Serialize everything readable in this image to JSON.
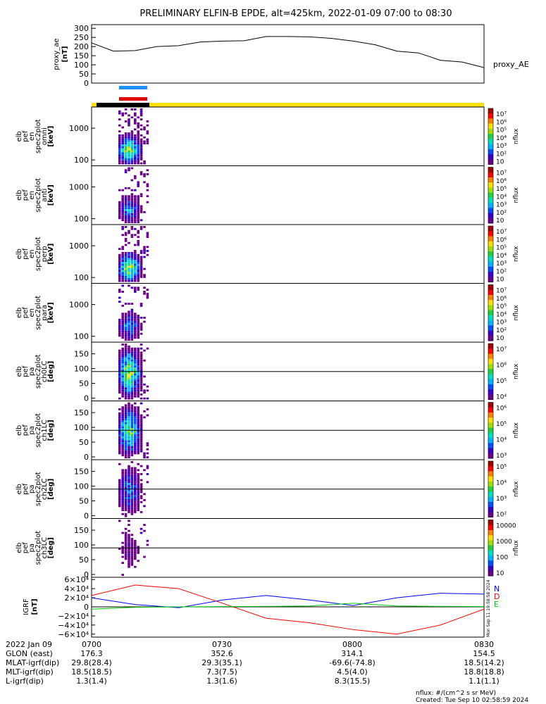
{
  "title": "PRELIMINARY ELFIN-B EPDE, alt=425km, 2022-01-09 07:00 to 08:30",
  "colors": {
    "yellow_bar": "#ffe000",
    "black_bar": "#000000",
    "blue_marker": "#1e8fff",
    "red_marker": "#e00000"
  },
  "ae_panel": {
    "ylabel": [
      "proxy_ae",
      "[nT]"
    ],
    "yticks": [
      "300",
      "250",
      "200",
      "150",
      "100",
      "50",
      "0"
    ],
    "legend": "proxy_AE",
    "ylim": [
      0,
      320
    ]
  },
  "spec_panels": [
    {
      "id": "omni",
      "ylabel": [
        "elb",
        "pef",
        "en",
        "spec2plot",
        "omni",
        "[keV]"
      ],
      "yticks": [
        "1000",
        "100"
      ],
      "cbar_ticks": [
        "10⁷",
        "10⁶",
        "10⁵",
        "10⁴",
        "10³",
        "10²",
        "10"
      ],
      "cbar_label": "nflux",
      "intensity": 1.0
    },
    {
      "id": "anti",
      "ylabel": [
        "elb",
        "pef",
        "en",
        "spec2plot",
        "anti",
        "[keV]"
      ],
      "yticks": [
        "1000",
        "100"
      ],
      "cbar_ticks": [
        "10⁷",
        "10⁶",
        "10⁵",
        "10⁴",
        "10³",
        "10²",
        "10"
      ],
      "cbar_label": "nflux",
      "intensity": 0.5
    },
    {
      "id": "perp",
      "ylabel": [
        "elb",
        "pef",
        "en",
        "spec2plot",
        "perp",
        "[keV]"
      ],
      "yticks": [
        "1000",
        "100"
      ],
      "cbar_ticks": [
        "10⁷",
        "10⁶",
        "10⁵",
        "10⁴",
        "10³",
        "10²",
        "10"
      ],
      "cbar_label": "nflux",
      "intensity": 1.0
    },
    {
      "id": "para",
      "ylabel": [
        "elb",
        "pef",
        "en",
        "spec2plot",
        "para",
        "[keV]"
      ],
      "yticks": [
        "1000",
        "100"
      ],
      "cbar_ticks": [
        "10⁷",
        "10⁶",
        "10⁵",
        "10⁴",
        "10³",
        "10²",
        "10"
      ],
      "cbar_label": "nflux",
      "intensity": 0.5
    }
  ],
  "pa_panels": [
    {
      "id": "ch0LC",
      "ylabel": [
        "elb",
        "pef",
        "pa",
        "spec2plot",
        "ch0LC",
        "[deg]"
      ],
      "yticks": [
        "150",
        "100",
        "50",
        "0"
      ],
      "cbar_ticks": [
        "10⁷",
        "10⁶",
        "10⁵",
        "10⁴"
      ],
      "cbar_label": "nflux",
      "intensity": 1.0
    },
    {
      "id": "ch1LC",
      "ylabel": [
        "elb",
        "pef",
        "pa",
        "spec2plot",
        "ch1LC",
        "[deg]"
      ],
      "yticks": [
        "150",
        "100",
        "50",
        "0"
      ],
      "cbar_ticks": [
        "10⁶",
        "10⁵",
        "10⁴",
        "10³"
      ],
      "cbar_label": "nflux",
      "intensity": 0.85
    },
    {
      "id": "ch2LC",
      "ylabel": [
        "elb",
        "pef",
        "pa",
        "spec2plot",
        "ch2LC",
        "[deg]"
      ],
      "yticks": [
        "150",
        "100",
        "50",
        "0"
      ],
      "cbar_ticks": [
        "10⁵",
        "10⁴",
        "10³",
        "10²"
      ],
      "cbar_label": "nflux",
      "intensity": 0.5
    },
    {
      "id": "ch3LC",
      "ylabel": [
        "elb",
        "pef",
        "pa",
        "spec2plot",
        "ch3LC",
        "[deg]"
      ],
      "yticks": [
        "150",
        "100",
        "50",
        "0"
      ],
      "cbar_ticks": [
        "10000",
        "1000",
        "100",
        "10"
      ],
      "cbar_label": "nflux",
      "intensity": 0.2
    }
  ],
  "igrf_panel": {
    "ylabel": [
      "IGRF",
      "[nT]"
    ],
    "yticks": [
      "6×10⁴",
      "4×10⁴",
      "2×10⁴",
      "0",
      "−2×10⁴",
      "−4×10⁴",
      "−6×10⁴"
    ],
    "legend": [
      {
        "name": "N",
        "color": "#0000ff"
      },
      {
        "name": "D",
        "color": "#ff0000"
      },
      {
        "name": "E",
        "color": "#00cc00"
      }
    ],
    "side_text": "Mon Sep 11 19:58:58 2024"
  },
  "orbit_table": {
    "row_labels": [
      "2022 Jan 09",
      "GLON (east)",
      "MLAT-igrf(dip)",
      "MLT-igrf(dip)",
      "L-igrf(dip)"
    ],
    "time_ticks": [
      "0700",
      "0730",
      "0800",
      "0830"
    ],
    "values": [
      [
        "176.3",
        "352.6",
        "314.1",
        "154.5"
      ],
      [
        "29.8(28.4)",
        "29.3(35.1)",
        "-69.6(-74.8)",
        "18.5(14.2)"
      ],
      [
        "18.5(18.5)",
        "7.3(7.5)",
        "4.5(4.0)",
        "18.8(18.8)"
      ],
      [
        "1.3(1.4)",
        "1.3(1.6)",
        "8.3(15.5)",
        "1.1(1.1)"
      ]
    ]
  },
  "footer": {
    "units": "nflux: #/(cm^2 s sr MeV)",
    "created": "Created: Tue Sep 10 02:58:59 2024"
  },
  "chart_data": [
    {
      "type": "line",
      "title": "PRELIMINARY ELFIN-B EPDE, alt=425km, 2022-01-09 07:00 to 08:30",
      "ylabel": "proxy_ae [nT]",
      "ylim": [
        0,
        320
      ],
      "x": [
        "07:00",
        "07:05",
        "07:10",
        "07:15",
        "07:20",
        "07:25",
        "07:30",
        "07:35",
        "07:40",
        "07:45",
        "07:50",
        "07:55",
        "08:00",
        "08:05",
        "08:10",
        "08:15",
        "08:20",
        "08:25",
        "08:30"
      ],
      "series": [
        {
          "name": "proxy_AE",
          "values": [
            220,
            175,
            178,
            200,
            205,
            225,
            230,
            232,
            255,
            255,
            253,
            245,
            230,
            210,
            175,
            165,
            125,
            115,
            85
          ]
        }
      ]
    },
    {
      "type": "heatmap",
      "title": "elb pef en spec2plot omni",
      "ylabel": "[keV]",
      "yscale": "log",
      "ylim": [
        60,
        6500
      ],
      "x_active_range": [
        "07:05",
        "07:10"
      ]
    },
    {
      "type": "heatmap",
      "title": "elb pef en spec2plot anti",
      "ylabel": "[keV]",
      "yscale": "log",
      "ylim": [
        60,
        6500
      ],
      "x_active_range": [
        "07:05",
        "07:10"
      ]
    },
    {
      "type": "heatmap",
      "title": "elb pef en spec2plot perp",
      "ylabel": "[keV]",
      "yscale": "log",
      "ylim": [
        60,
        6500
      ],
      "x_active_range": [
        "07:05",
        "07:10"
      ]
    },
    {
      "type": "heatmap",
      "title": "elb pef en spec2plot para",
      "ylabel": "[keV]",
      "yscale": "log",
      "ylim": [
        60,
        6500
      ],
      "x_active_range": [
        "07:05",
        "07:10"
      ]
    },
    {
      "type": "heatmap",
      "title": "elb pef pa spec2plot ch0LC",
      "ylabel": "[deg]",
      "ylim": [
        0,
        180
      ],
      "x_active_range": [
        "07:05",
        "07:10"
      ]
    },
    {
      "type": "heatmap",
      "title": "elb pef pa spec2plot ch1LC",
      "ylabel": "[deg]",
      "ylim": [
        0,
        180
      ],
      "x_active_range": [
        "07:05",
        "07:10"
      ]
    },
    {
      "type": "heatmap",
      "title": "elb pef pa spec2plot ch2LC",
      "ylabel": "[deg]",
      "ylim": [
        0,
        180
      ],
      "x_active_range": [
        "07:05",
        "07:10"
      ]
    },
    {
      "type": "heatmap",
      "title": "elb pef pa spec2plot ch3LC",
      "ylabel": "[deg]",
      "ylim": [
        0,
        180
      ],
      "x_active_range": [
        "07:05",
        "07:10"
      ]
    },
    {
      "type": "line",
      "title": "IGRF",
      "ylabel": "IGRF [nT]",
      "ylim": [
        -65000,
        65000
      ],
      "x": [
        "07:00",
        "07:10",
        "07:20",
        "07:30",
        "07:40",
        "07:50",
        "08:00",
        "08:10",
        "08:20",
        "08:30"
      ],
      "series": [
        {
          "name": "N",
          "values": [
            20000,
            5000,
            -2000,
            15000,
            25000,
            15000,
            3000,
            20000,
            30000,
            28000
          ]
        },
        {
          "name": "D",
          "values": [
            25000,
            48000,
            40000,
            8000,
            -25000,
            -35000,
            -50000,
            -60000,
            -40000,
            -5000
          ]
        },
        {
          "name": "E",
          "values": [
            -5000,
            -1000,
            0,
            500,
            1000,
            2000,
            8000,
            2000,
            1000,
            500
          ]
        }
      ]
    }
  ]
}
